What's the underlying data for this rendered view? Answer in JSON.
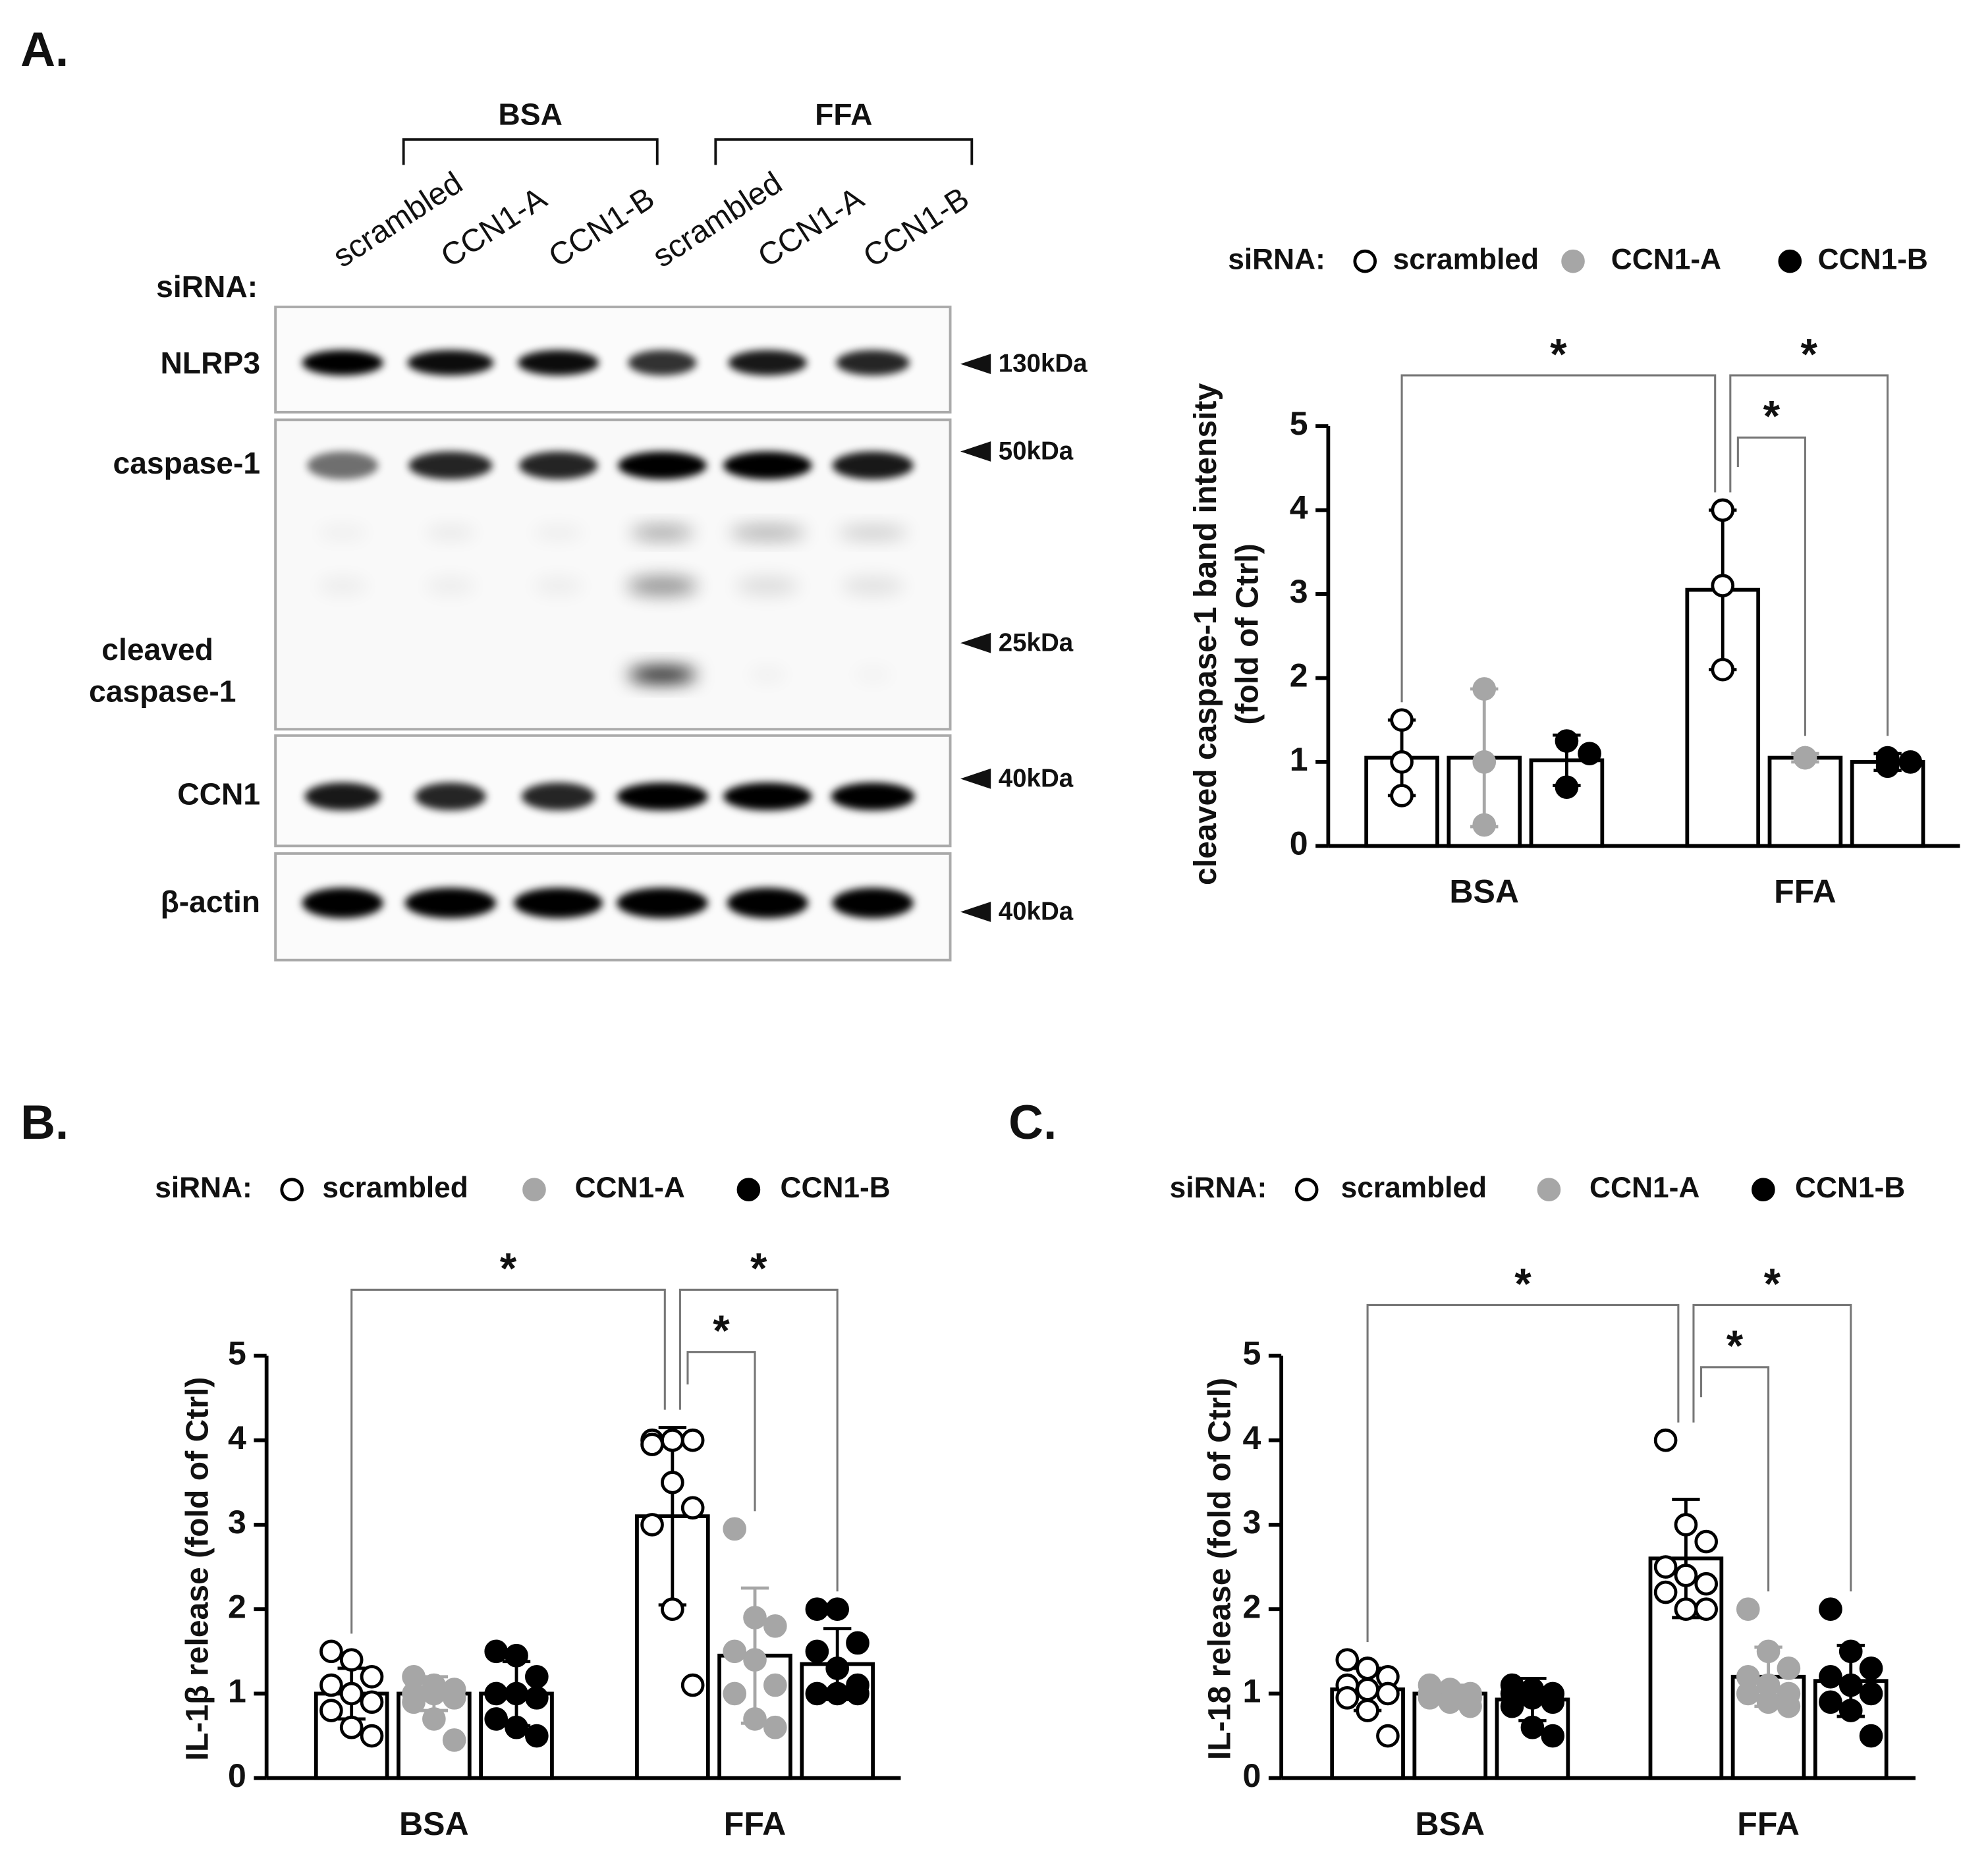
{
  "panels": [
    "A.",
    "B.",
    "C."
  ],
  "blot": {
    "groups": [
      "BSA",
      "FFA"
    ],
    "lane_title": "siRNA:",
    "lanes": [
      "scrambled",
      "CCN1-A",
      "CCN1-B",
      "scrambled",
      "CCN1-A",
      "CCN1-B"
    ],
    "proteins": [
      [
        "NLRP3"
      ],
      [
        "caspase-1"
      ],
      [
        "cleaved",
        "caspase-1"
      ],
      [
        "CCN1"
      ],
      [
        "β-actin"
      ]
    ],
    "markers": [
      "130kDa",
      "50kDa",
      "25kDa",
      "40kDa",
      "40kDa"
    ]
  },
  "chart_data": [
    {
      "type": "bar",
      "ylabel": [
        "cleaved caspase-1 band intensity",
        "(fold of Ctrl)"
      ],
      "legend_title": "siRNA:",
      "categories": [
        "BSA",
        "FFA"
      ],
      "ylim": [
        0,
        5
      ],
      "yticks": [
        0,
        1,
        2,
        3,
        4,
        5
      ],
      "grid": false,
      "annotations": [
        "*",
        "*",
        "*"
      ],
      "series": [
        {
          "name": "scrambled",
          "color": "#ffffff",
          "values": [
            1.05,
            3.05
          ],
          "errors": [
            0.45,
            0.95
          ],
          "points": [
            [
              1.5,
              1.0,
              0.6
            ],
            [
              4.0,
              3.1,
              2.1
            ]
          ]
        },
        {
          "name": "CCN1-A",
          "color": "#a6a6a6",
          "values": [
            1.05,
            1.05
          ],
          "errors": [
            0.82,
            0.05
          ],
          "points": [
            [
              1.87,
              1.0,
              0.25
            ],
            [
              1.05,
              1.05,
              1.05
            ]
          ]
        },
        {
          "name": "CCN1-B",
          "color": "#000000",
          "values": [
            1.02,
            1.0
          ],
          "errors": [
            0.3,
            0.1
          ],
          "points": [
            [
              1.25,
              1.1,
              0.7
            ],
            [
              1.05,
              1.0,
              0.95
            ]
          ]
        }
      ]
    },
    {
      "type": "bar",
      "ylabel": [
        "IL-1β release (fold of Ctrl)"
      ],
      "legend_title": "siRNA:",
      "categories": [
        "BSA",
        "FFA"
      ],
      "ylim": [
        0,
        5
      ],
      "yticks": [
        0,
        1,
        2,
        3,
        4,
        5
      ],
      "grid": false,
      "annotations": [
        "*",
        "*",
        "*"
      ],
      "series": [
        {
          "name": "scrambled",
          "color": "#ffffff",
          "values": [
            1.0,
            3.1
          ],
          "errors": [
            0.3,
            1.05
          ],
          "points": [
            [
              1.5,
              1.4,
              1.2,
              1.1,
              1.0,
              0.9,
              0.8,
              0.6,
              0.5
            ],
            [
              4.0,
              4.0,
              4.0,
              3.95,
              3.5,
              3.2,
              3.0,
              2.0,
              1.1
            ]
          ]
        },
        {
          "name": "CCN1-A",
          "color": "#a6a6a6",
          "values": [
            1.0,
            1.45
          ],
          "errors": [
            0.2,
            0.8
          ],
          "points": [
            [
              1.2,
              1.1,
              1.05,
              1.0,
              1.0,
              0.95,
              0.9,
              0.7,
              0.45
            ],
            [
              2.95,
              1.9,
              1.8,
              1.5,
              1.4,
              1.1,
              1.0,
              0.7,
              0.6
            ]
          ]
        },
        {
          "name": "CCN1-B",
          "color": "#000000",
          "values": [
            1.0,
            1.35
          ],
          "errors": [
            0.38,
            0.42
          ],
          "points": [
            [
              1.5,
              1.45,
              1.2,
              1.0,
              1.0,
              0.95,
              0.7,
              0.6,
              0.5
            ],
            [
              2.0,
              2.0,
              1.6,
              1.5,
              1.3,
              1.1,
              1.0,
              1.0,
              1.0
            ]
          ]
        }
      ]
    },
    {
      "type": "bar",
      "ylabel": [
        "IL-18 release (fold of Ctrl)"
      ],
      "legend_title": "siRNA:",
      "categories": [
        "BSA",
        "FFA"
      ],
      "ylim": [
        0,
        5
      ],
      "yticks": [
        0,
        1,
        2,
        3,
        4,
        5
      ],
      "grid": false,
      "annotations": [
        "*",
        "*",
        "*"
      ],
      "series": [
        {
          "name": "scrambled",
          "color": "#ffffff",
          "values": [
            1.05,
            2.6
          ],
          "errors": [
            0.25,
            0.7
          ],
          "points": [
            [
              1.4,
              1.3,
              1.2,
              1.1,
              1.05,
              1.0,
              0.95,
              0.8,
              0.5
            ],
            [
              4.0,
              3.0,
              2.8,
              2.5,
              2.4,
              2.3,
              2.2,
              2.0,
              2.0
            ]
          ]
        },
        {
          "name": "CCN1-A",
          "color": "#a6a6a6",
          "values": [
            1.0,
            1.2
          ],
          "errors": [
            0.1,
            0.35
          ],
          "points": [
            [
              1.1,
              1.05,
              1.0,
              1.0,
              1.0,
              0.95,
              0.95,
              0.9,
              0.85
            ],
            [
              2.0,
              1.5,
              1.3,
              1.2,
              1.1,
              1.0,
              1.0,
              0.9,
              0.85
            ]
          ]
        },
        {
          "name": "CCN1-B",
          "color": "#000000",
          "values": [
            0.93,
            1.15
          ],
          "errors": [
            0.25,
            0.42
          ],
          "points": [
            [
              1.1,
              1.05,
              1.0,
              1.0,
              0.95,
              0.9,
              0.85,
              0.6,
              0.5
            ],
            [
              2.0,
              1.5,
              1.3,
              1.2,
              1.1,
              1.0,
              0.9,
              0.8,
              0.5
            ]
          ]
        }
      ]
    }
  ]
}
